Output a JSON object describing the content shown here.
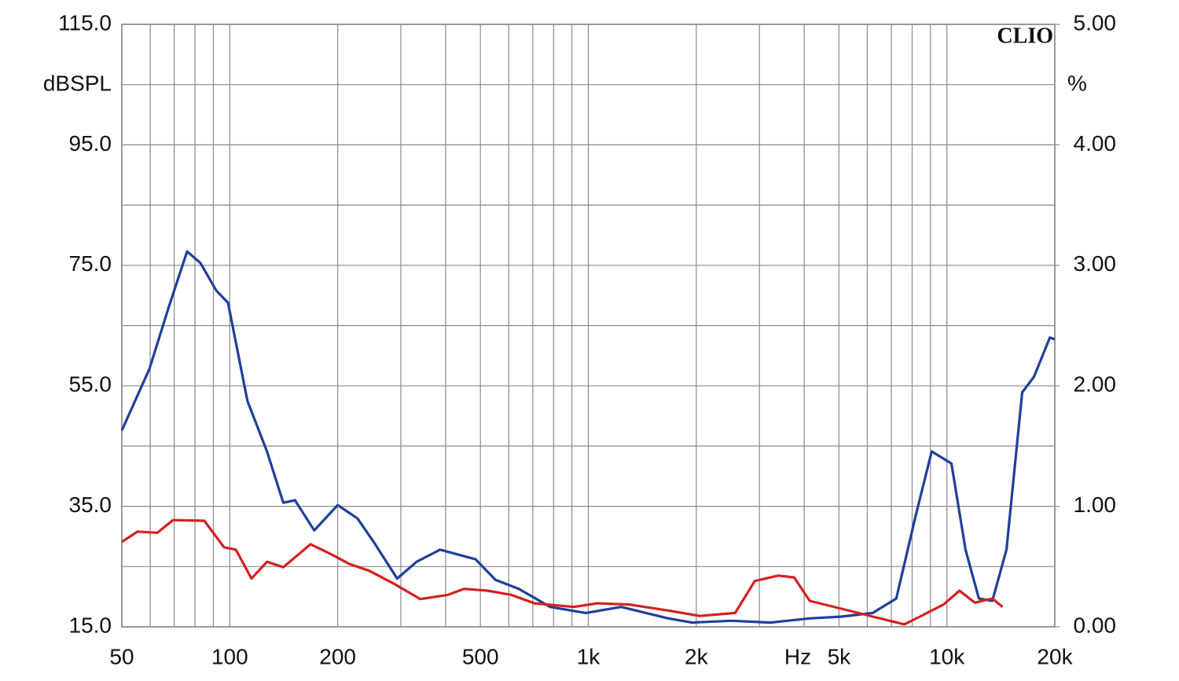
{
  "chart_data": {
    "type": "line",
    "brand": "CLIO",
    "y_unit": "dBSPL",
    "y2_unit": "%",
    "x_unit": "Hz",
    "log_x": true,
    "grid": true,
    "xlim": [
      50,
      20000
    ],
    "xticks": [
      50,
      100,
      200,
      500,
      {
        "value": 1000,
        "label": "1k"
      },
      {
        "value": 2000,
        "label": "2k"
      },
      {
        "value": 5000,
        "label": "5k"
      },
      {
        "value": 10000,
        "label": "10k"
      },
      {
        "value": 20000,
        "label": "20k"
      }
    ],
    "xgrid": [
      60,
      70,
      80,
      90,
      300,
      400,
      600,
      700,
      800,
      900,
      3000,
      4000,
      6000,
      7000,
      8000,
      9000
    ],
    "ylim": [
      15,
      115
    ],
    "yticks": [
      {
        "value": 115,
        "label": "115.0"
      },
      {
        "value": 95,
        "label": "95.0"
      },
      {
        "value": 75,
        "label": "75.0"
      },
      {
        "value": 55,
        "label": "55.0"
      },
      {
        "value": 35,
        "label": "35.0"
      },
      {
        "value": 15,
        "label": "15.0"
      }
    ],
    "ygrid": [
      105,
      85,
      65,
      45,
      25
    ],
    "y2lim": [
      0,
      5
    ],
    "y2ticks": [
      {
        "value": 5,
        "label": "5.00"
      },
      {
        "value": 4,
        "label": "4.00"
      },
      {
        "value": 3,
        "label": "3.00"
      },
      {
        "value": 2,
        "label": "2.00"
      },
      {
        "value": 1,
        "label": "1.00"
      },
      {
        "value": 0,
        "label": "0.00"
      }
    ],
    "series": [
      {
        "color": "#1f3f99",
        "x": [
          50,
          59.7,
          67.7,
          76,
          82.8,
          91.7,
          98.9,
          112,
          127,
          141,
          152,
          172,
          200,
          227,
          252,
          293,
          332,
          386,
          485,
          551,
          640,
          783,
          984,
          1235,
          1671,
          1945,
          2505,
          3222,
          4145,
          5080,
          6211,
          7227,
          8198,
          9072,
          10300,
          11270,
          12280,
          13390,
          14660,
          16220,
          17500,
          19370,
          20000
        ],
        "values": [
          47.6,
          57.8,
          68.2,
          77.3,
          75.4,
          70.8,
          68.8,
          52.5,
          44.1,
          35.6,
          36.0,
          31.0,
          35.2,
          33.0,
          29.1,
          23.0,
          25.8,
          27.8,
          26.2,
          22.8,
          21.3,
          18.3,
          17.3,
          18.3,
          16.4,
          15.7,
          16.0,
          15.7,
          16.4,
          16.7,
          17.3,
          19.7,
          33.6,
          44.1,
          42.1,
          27.8,
          19.7,
          19.3,
          27.8,
          53.9,
          56.5,
          63.0,
          62.7
        ]
      },
      {
        "color": "#d42020",
        "x": [
          50,
          55.3,
          62.8,
          69.4,
          84.9,
          96.4,
          104,
          115,
          127,
          141,
          168,
          191,
          216,
          245,
          286,
          340,
          406,
          450,
          523,
          609,
          708,
          911,
          1061,
          1298,
          1671,
          2046,
          2568,
          2913,
          3388,
          3748,
          4145,
          5080,
          6211,
          7602,
          8412,
          9793,
          10840,
          11970,
          13390,
          14290
        ],
        "values": [
          29.1,
          30.8,
          30.6,
          32.7,
          32.6,
          28.2,
          27.8,
          23.0,
          25.8,
          24.9,
          28.7,
          27.1,
          25.4,
          24.3,
          22.2,
          19.6,
          20.3,
          21.3,
          21.0,
          20.3,
          18.9,
          18.3,
          18.9,
          18.7,
          17.7,
          16.8,
          17.3,
          22.6,
          23.5,
          23.2,
          19.3,
          18.0,
          16.7,
          15.4,
          16.7,
          18.7,
          21.0,
          19.0,
          19.7,
          18.3
        ]
      }
    ]
  }
}
